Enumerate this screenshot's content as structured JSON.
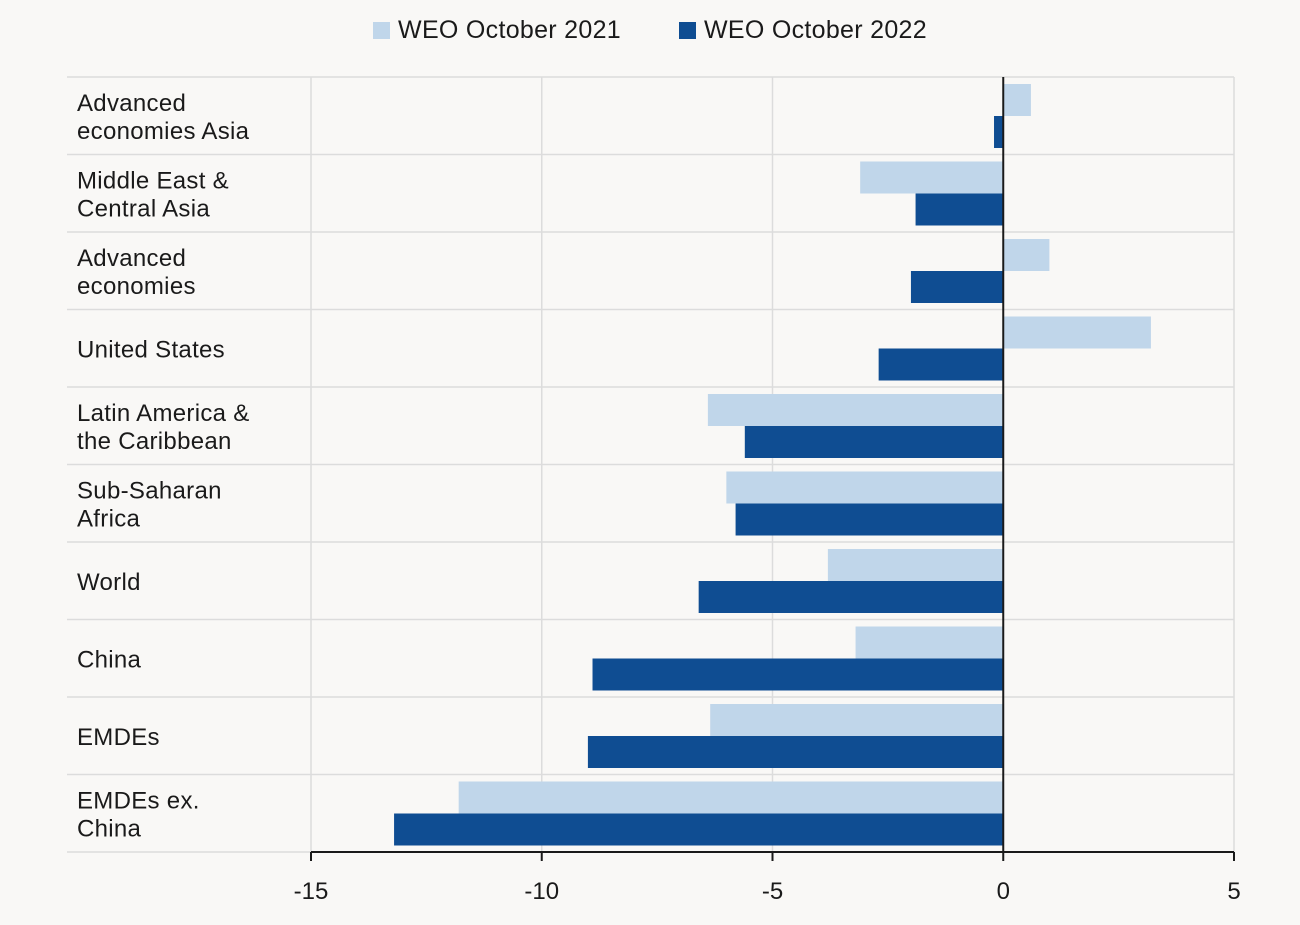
{
  "colors": {
    "series_2021": "#c0d6ea",
    "series_2022": "#0f4d92",
    "grid": "#dcdcdc",
    "axis": "#1a1a1a"
  },
  "chart_data": {
    "type": "bar",
    "orientation": "horizontal",
    "categories": [
      [
        "Advanced",
        "economies Asia"
      ],
      [
        "Middle East &",
        "Central Asia"
      ],
      [
        "Advanced",
        "economies"
      ],
      [
        "United States"
      ],
      [
        "Latin America &",
        "the Caribbean"
      ],
      [
        "Sub-Saharan",
        "Africa"
      ],
      [
        "World"
      ],
      [
        "China"
      ],
      [
        "EMDEs"
      ],
      [
        "EMDEs ex.",
        "China"
      ]
    ],
    "series": [
      {
        "name": "WEO October 2021",
        "values": [
          0.6,
          -3.1,
          1.0,
          3.2,
          -6.4,
          -6.0,
          -3.8,
          -3.2,
          -6.35,
          -11.8
        ]
      },
      {
        "name": "WEO October 2022",
        "values": [
          -0.2,
          -1.9,
          -2.0,
          -2.7,
          -5.6,
          -5.8,
          -6.6,
          -8.9,
          -9.0,
          -13.2
        ]
      }
    ],
    "xlim": [
      -15,
      5
    ],
    "xticks": [
      "-15",
      "-10",
      "-5",
      "0",
      "5"
    ],
    "grid": true,
    "legend": "top-center"
  }
}
